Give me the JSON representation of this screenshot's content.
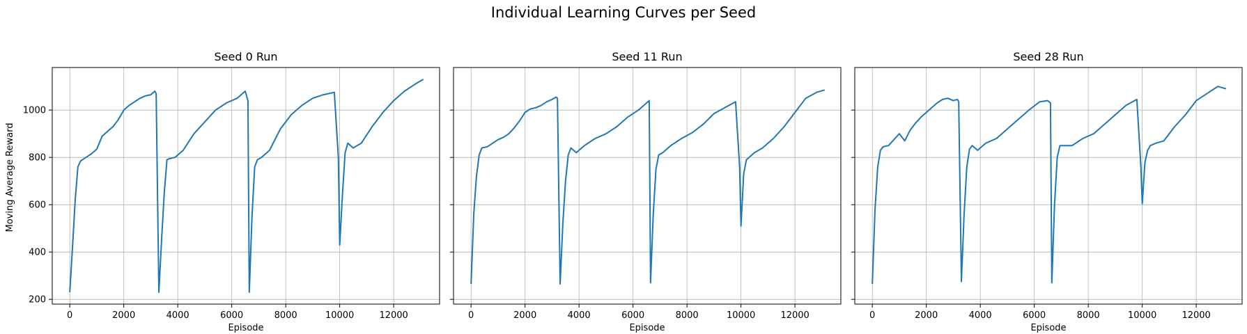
{
  "figure": {
    "suptitle": "Individual Learning Curves per Seed",
    "ylabel": "Moving Average Reward"
  },
  "chart_data": [
    {
      "type": "line",
      "title": "Seed 0 Run",
      "xlabel": "Episode",
      "ylabel": "Moving Average Reward",
      "xlim": [
        -650,
        13700
      ],
      "ylim": [
        180,
        1180
      ],
      "xticks": [
        0,
        2000,
        4000,
        6000,
        8000,
        10000,
        12000
      ],
      "yticks": [
        200,
        400,
        600,
        800,
        1000
      ],
      "grid": true,
      "color": "#1f77b4",
      "series": [
        {
          "x": [
            0,
            100,
            200,
            300,
            400,
            600,
            800,
            1000,
            1200,
            1400,
            1600,
            1800,
            2000,
            2200,
            2400,
            2600,
            2800,
            3000,
            3150,
            3200,
            3300,
            3400,
            3500,
            3600,
            3700,
            3900,
            4200,
            4600,
            5000,
            5400,
            5800,
            6200,
            6500,
            6600,
            6650,
            6750,
            6850,
            6950,
            7100,
            7400,
            7800,
            8200,
            8600,
            9000,
            9400,
            9800,
            9950,
            10000,
            10100,
            10200,
            10300,
            10500,
            10800,
            11200,
            11600,
            12000,
            12400,
            12800,
            13100
          ],
          "y": [
            230,
            420,
            620,
            760,
            785,
            800,
            815,
            835,
            890,
            910,
            930,
            960,
            1000,
            1020,
            1035,
            1050,
            1060,
            1065,
            1080,
            1070,
            230,
            450,
            650,
            790,
            795,
            800,
            830,
            900,
            950,
            1000,
            1030,
            1050,
            1080,
            1040,
            230,
            550,
            760,
            790,
            800,
            830,
            920,
            980,
            1020,
            1050,
            1065,
            1075,
            800,
            430,
            640,
            820,
            860,
            840,
            860,
            930,
            990,
            1040,
            1080,
            1110,
            1130
          ]
        }
      ]
    },
    {
      "type": "line",
      "title": "Seed 11 Run",
      "xlabel": "Episode",
      "ylabel": "",
      "xlim": [
        -650,
        13700
      ],
      "ylim": [
        180,
        1180
      ],
      "xticks": [
        0,
        2000,
        4000,
        6000,
        8000,
        10000,
        12000
      ],
      "yticks": [
        200,
        400,
        600,
        800,
        1000
      ],
      "grid": true,
      "color": "#1f77b4",
      "series": [
        {
          "x": [
            0,
            100,
            200,
            300,
            400,
            600,
            800,
            1000,
            1200,
            1400,
            1600,
            1800,
            2000,
            2200,
            2400,
            2600,
            2800,
            3000,
            3150,
            3200,
            3300,
            3400,
            3500,
            3600,
            3700,
            3900,
            4200,
            4600,
            5000,
            5400,
            5800,
            6200,
            6500,
            6600,
            6650,
            6750,
            6850,
            6950,
            7100,
            7400,
            7800,
            8200,
            8600,
            9000,
            9400,
            9800,
            9950,
            10000,
            10100,
            10200,
            10300,
            10500,
            10800,
            11200,
            11600,
            12000,
            12400,
            12800,
            13100
          ],
          "y": [
            265,
            560,
            720,
            810,
            840,
            845,
            860,
            875,
            885,
            900,
            925,
            955,
            990,
            1005,
            1010,
            1020,
            1035,
            1045,
            1055,
            1050,
            265,
            520,
            700,
            810,
            840,
            820,
            850,
            880,
            900,
            930,
            970,
            1000,
            1030,
            1040,
            270,
            560,
            750,
            810,
            820,
            850,
            880,
            905,
            940,
            985,
            1010,
            1035,
            760,
            510,
            730,
            790,
            800,
            820,
            840,
            880,
            930,
            990,
            1050,
            1075,
            1085
          ]
        }
      ]
    },
    {
      "type": "line",
      "title": "Seed 28 Run",
      "xlabel": "Episode",
      "ylabel": "",
      "xlim": [
        -650,
        13700
      ],
      "ylim": [
        180,
        1180
      ],
      "xticks": [
        0,
        2000,
        4000,
        6000,
        8000,
        10000,
        12000
      ],
      "yticks": [
        200,
        400,
        600,
        800,
        1000
      ],
      "grid": true,
      "color": "#1f77b4",
      "series": [
        {
          "x": [
            0,
            100,
            200,
            300,
            400,
            600,
            800,
            1000,
            1200,
            1400,
            1600,
            1800,
            2000,
            2200,
            2400,
            2600,
            2800,
            3000,
            3150,
            3200,
            3300,
            3400,
            3500,
            3600,
            3700,
            3900,
            4200,
            4600,
            5000,
            5400,
            5800,
            6200,
            6500,
            6600,
            6650,
            6750,
            6850,
            6950,
            7100,
            7400,
            7800,
            8200,
            8600,
            9000,
            9400,
            9800,
            9950,
            10000,
            10100,
            10200,
            10300,
            10500,
            10800,
            11200,
            11600,
            12000,
            12400,
            12800,
            13100
          ],
          "y": [
            265,
            580,
            760,
            830,
            845,
            850,
            875,
            900,
            870,
            915,
            945,
            970,
            990,
            1010,
            1030,
            1045,
            1050,
            1040,
            1045,
            1035,
            275,
            560,
            760,
            835,
            850,
            830,
            860,
            880,
            920,
            960,
            1000,
            1035,
            1040,
            1030,
            270,
            600,
            800,
            850,
            850,
            850,
            880,
            900,
            940,
            980,
            1020,
            1045,
            760,
            605,
            780,
            830,
            850,
            860,
            870,
            930,
            980,
            1040,
            1070,
            1100,
            1090
          ]
        }
      ]
    }
  ]
}
